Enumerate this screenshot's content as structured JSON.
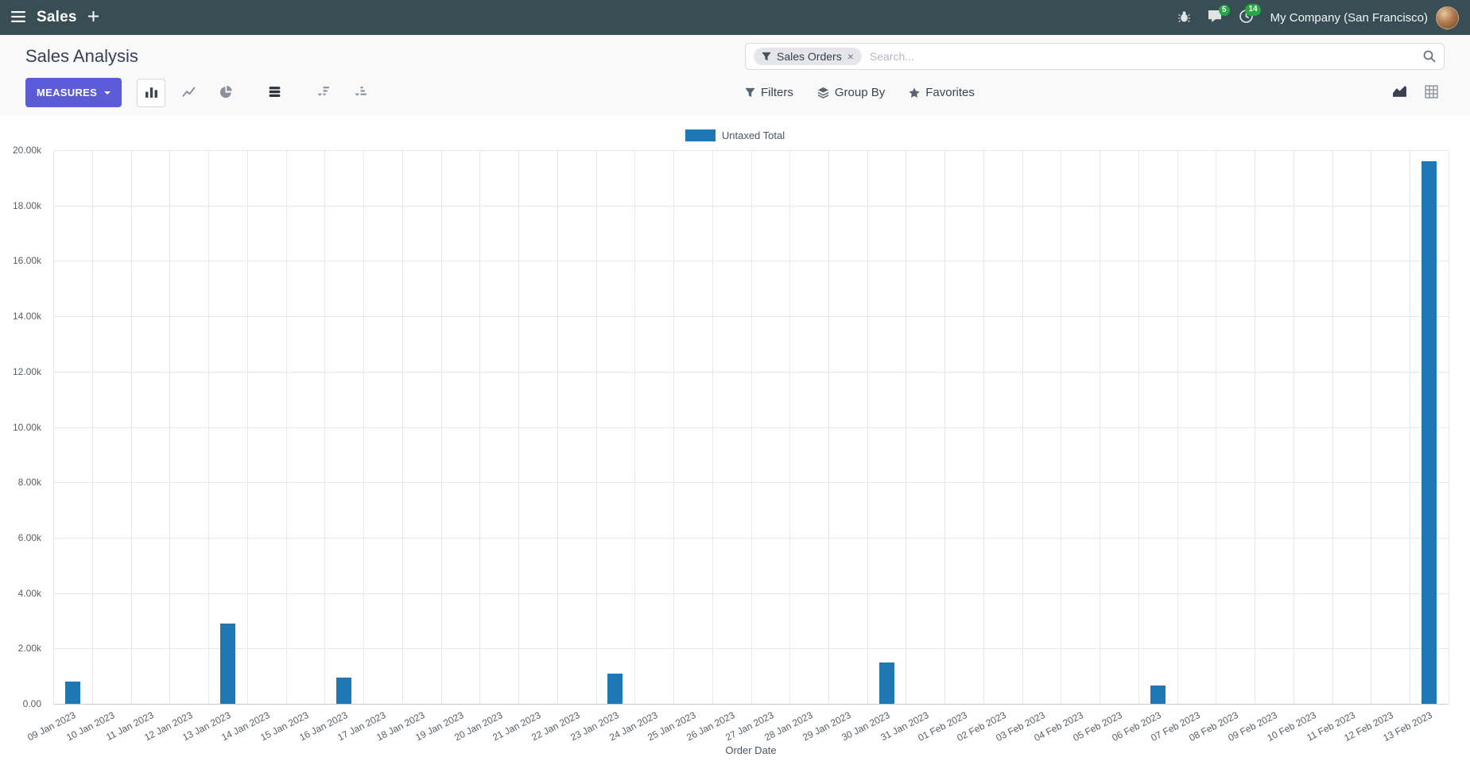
{
  "navbar": {
    "app_name": "Sales",
    "company": "My Company (San Francisco)",
    "message_badge": "5",
    "activity_badge": "14"
  },
  "control_panel": {
    "title": "Sales Analysis",
    "measures_label": "MEASURES",
    "search": {
      "facet": "Sales Orders",
      "facet_remove": "×",
      "placeholder": "Search..."
    },
    "filters_label": "Filters",
    "group_by_label": "Group By",
    "favorites_label": "Favorites"
  },
  "icons": {
    "navbar": [
      "apps-menu-icon",
      "plus-icon",
      "bug-icon",
      "chat-icon",
      "clock-icon"
    ],
    "toolbar": [
      "bar-chart-icon",
      "line-chart-icon",
      "pie-chart-icon",
      "stacked-icon",
      "sort-desc-icon",
      "sort-asc-icon",
      "funnel-icon",
      "layers-icon",
      "star-icon",
      "area-chart-icon",
      "pivot-grid-icon",
      "search-icon"
    ]
  },
  "colors": {
    "navbar_bg": "#384d54",
    "primary_button": "#5b5bd6",
    "badge_green": "#28a745",
    "bar_blue": "#1f77b4"
  },
  "chart_data": {
    "type": "bar",
    "title": "",
    "xlabel": "Order Date",
    "ylabel": "",
    "ylim": [
      0,
      20000
    ],
    "grid": true,
    "legend_position": "top-center",
    "y_tick_labels": [
      "0.00",
      "2.00k",
      "4.00k",
      "6.00k",
      "8.00k",
      "10.00k",
      "12.00k",
      "14.00k",
      "16.00k",
      "18.00k",
      "20.00k"
    ],
    "categories": [
      "09 Jan 2023",
      "10 Jan 2023",
      "11 Jan 2023",
      "12 Jan 2023",
      "13 Jan 2023",
      "14 Jan 2023",
      "15 Jan 2023",
      "16 Jan 2023",
      "17 Jan 2023",
      "18 Jan 2023",
      "19 Jan 2023",
      "20 Jan 2023",
      "21 Jan 2023",
      "22 Jan 2023",
      "23 Jan 2023",
      "24 Jan 2023",
      "25 Jan 2023",
      "26 Jan 2023",
      "27 Jan 2023",
      "28 Jan 2023",
      "29 Jan 2023",
      "30 Jan 2023",
      "31 Jan 2023",
      "01 Feb 2023",
      "02 Feb 2023",
      "03 Feb 2023",
      "04 Feb 2023",
      "05 Feb 2023",
      "06 Feb 2023",
      "07 Feb 2023",
      "08 Feb 2023",
      "09 Feb 2023",
      "10 Feb 2023",
      "11 Feb 2023",
      "12 Feb 2023",
      "13 Feb 2023"
    ],
    "series": [
      {
        "name": "Untaxed Total",
        "color": "#1f77b4",
        "values": [
          800,
          0,
          0,
          0,
          2900,
          0,
          0,
          950,
          0,
          0,
          0,
          0,
          0,
          0,
          1080,
          0,
          0,
          0,
          0,
          0,
          0,
          1500,
          0,
          0,
          0,
          0,
          0,
          0,
          650,
          0,
          0,
          0,
          0,
          0,
          0,
          19600
        ]
      }
    ]
  }
}
